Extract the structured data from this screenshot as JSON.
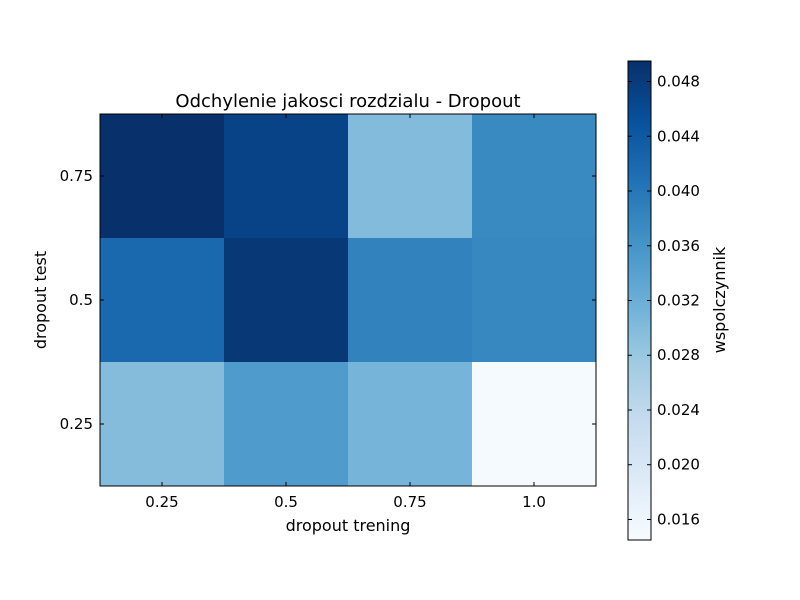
{
  "chart_data": {
    "type": "heatmap",
    "title": "Odchylenie jakosci rozdzialu - Dropout",
    "xlabel": "dropout trening",
    "ylabel": "dropout test",
    "x_categories": [
      "0.25",
      "0.5",
      "0.75",
      "1.0"
    ],
    "y_categories": [
      "0.75",
      "0.5",
      "0.25"
    ],
    "values": [
      [
        0.0495,
        0.047,
        0.03,
        0.0375
      ],
      [
        0.042,
        0.0485,
        0.0385,
        0.0378
      ],
      [
        0.0298,
        0.035,
        0.031,
        0.0148
      ]
    ],
    "colormap": "Blues",
    "colorbar": {
      "label": "wspolczynnik",
      "range": [
        0.0145,
        0.0495
      ],
      "ticks": [
        "0.016",
        "0.020",
        "0.024",
        "0.028",
        "0.032",
        "0.036",
        "0.040",
        "0.044",
        "0.048"
      ]
    }
  }
}
